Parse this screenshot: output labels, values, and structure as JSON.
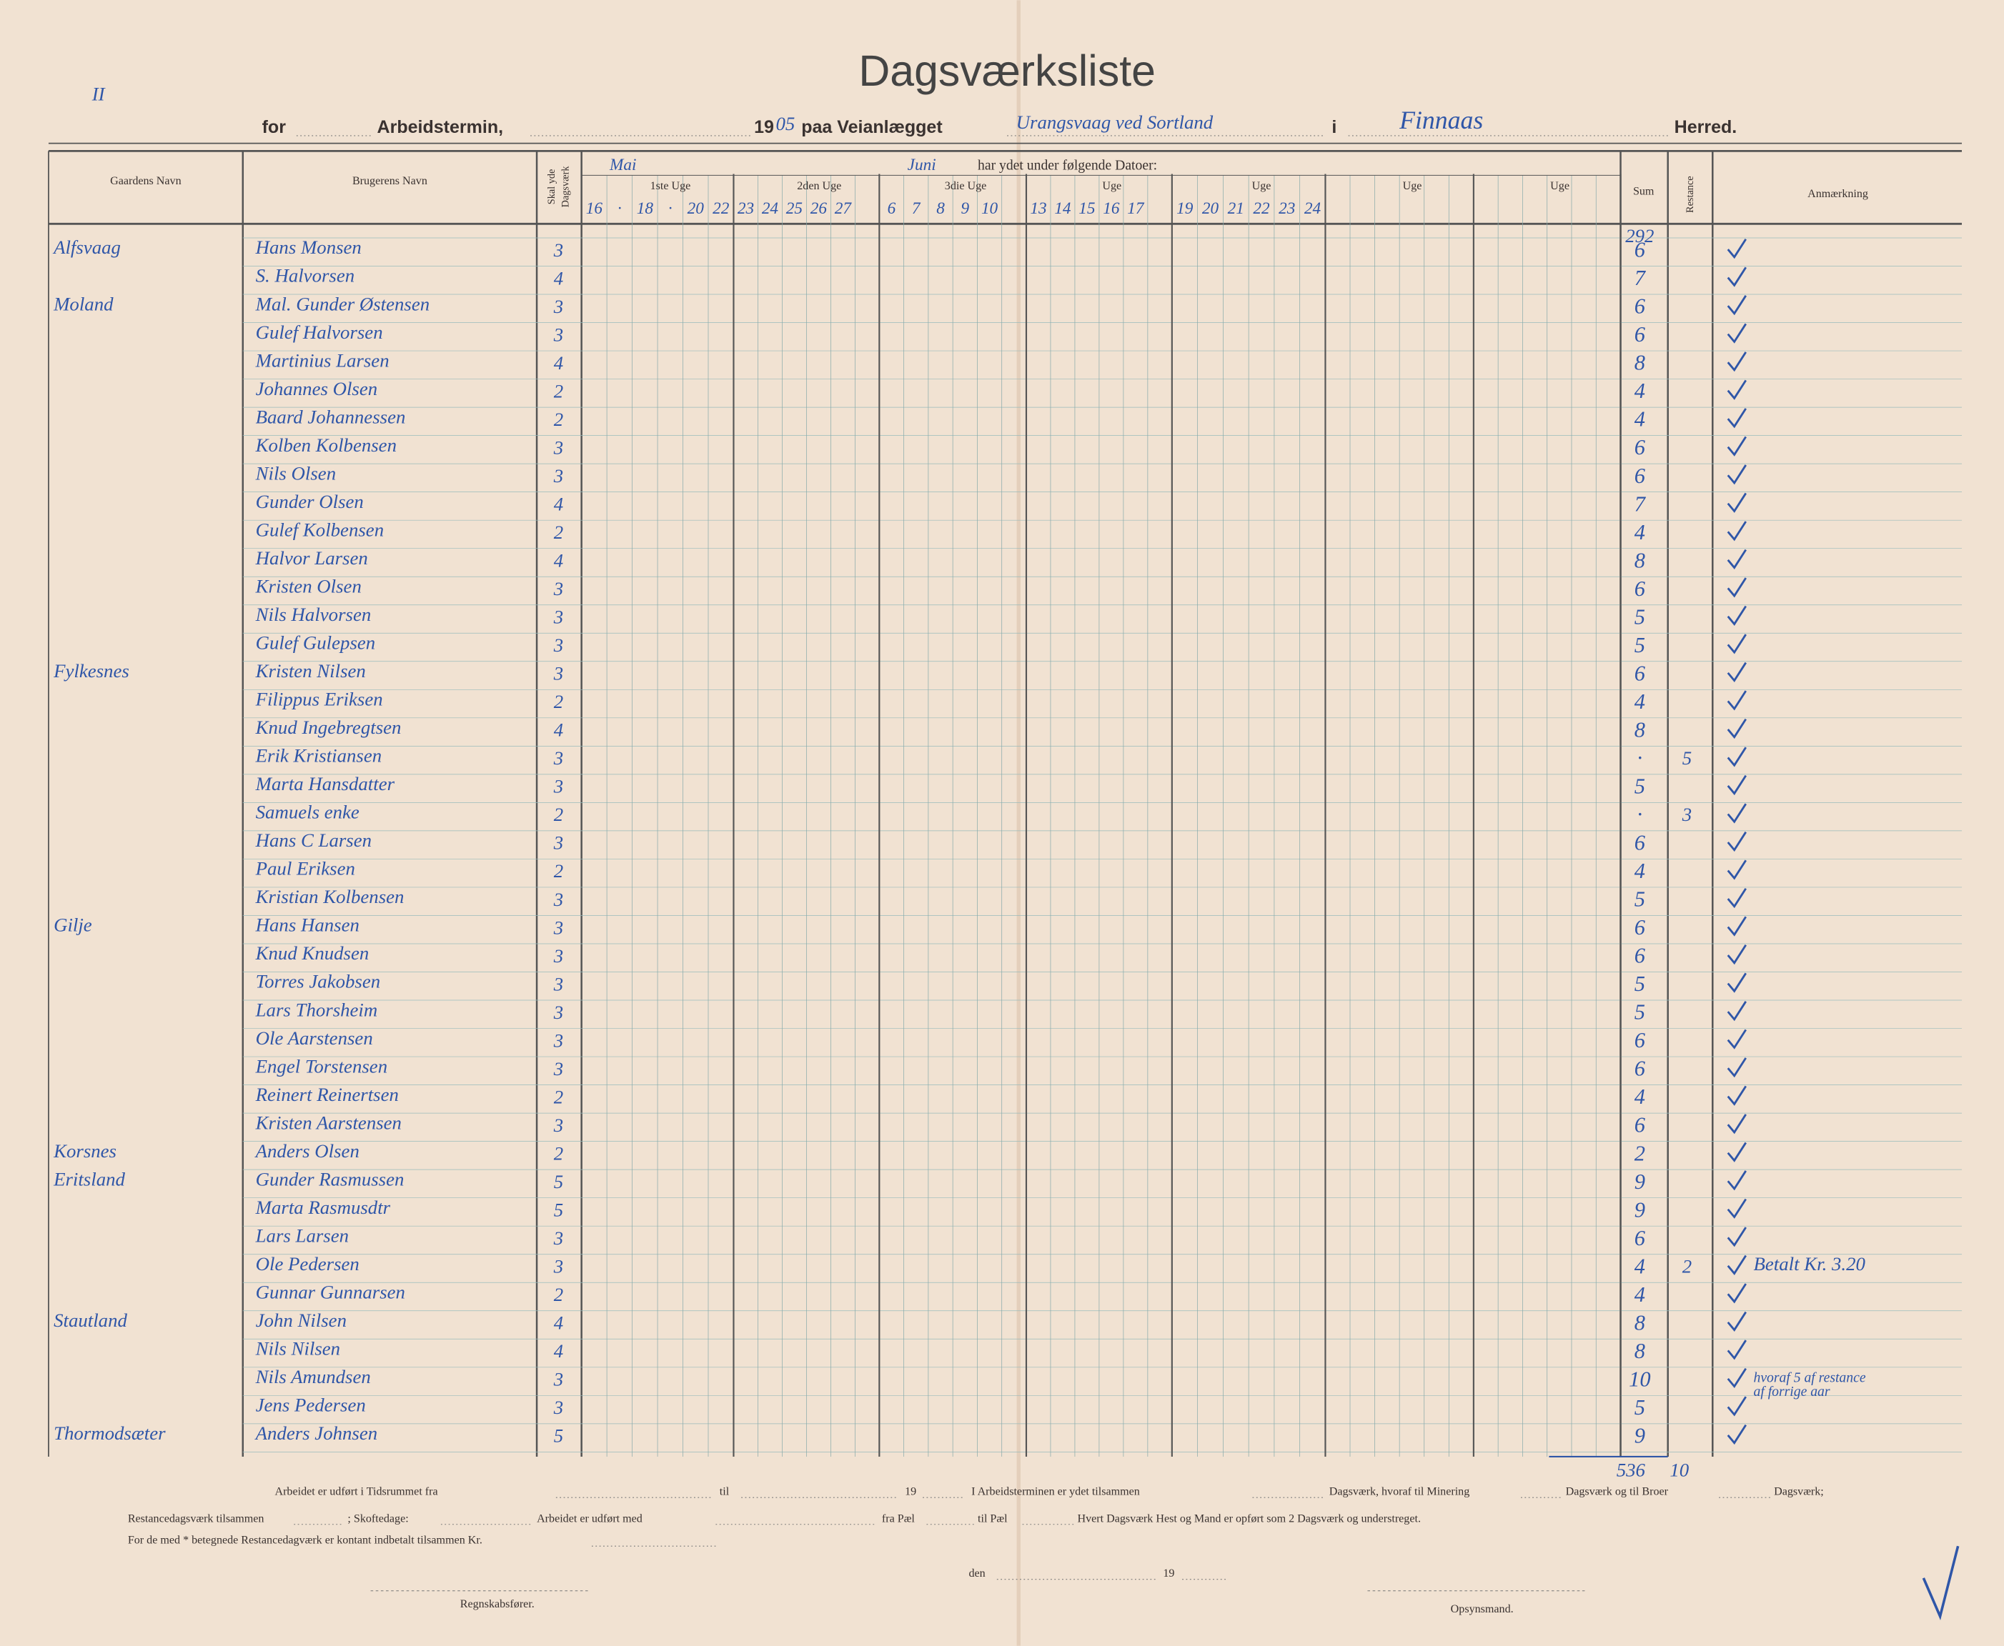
{
  "corner_mark": "II",
  "header": {
    "title": "Dagsværksliste",
    "for": "for",
    "termin": "Arbeidstermin,",
    "year_prefix": "19",
    "year": "05",
    "paa": "paa Veianlægget",
    "veianlaeg": "Urangsvaag ved Sortland",
    "i": "i",
    "herred_name": "Finnaas",
    "herred": "Herred."
  },
  "columns": {
    "gaard": "Gaardens Navn",
    "bruger": "Brugerens Navn",
    "skal": [
      "Skal yde",
      "Dagsværk"
    ],
    "datoer": "har ydet under følgende Datoer:",
    "weeks": [
      {
        "label": "1ste Uge",
        "month": "Mai",
        "dates": [
          "16",
          "·",
          "18",
          "·",
          "20",
          "22"
        ]
      },
      {
        "label": "2den Uge",
        "dates": [
          "23",
          "24",
          "25",
          "26",
          "27"
        ]
      },
      {
        "label": "3die Uge",
        "month": "Juni",
        "dates": [
          "6",
          "7",
          "8",
          "9",
          "10"
        ]
      },
      {
        "label": "Uge",
        "dates": [
          "13",
          "14",
          "15",
          "16",
          "17"
        ]
      },
      {
        "label": "Uge",
        "dates": [
          "19",
          "20",
          "21",
          "22",
          "23",
          "24"
        ]
      },
      {
        "label": "Uge"
      },
      {
        "label": "Uge"
      }
    ],
    "sum": "Sum",
    "restance": "Restance",
    "anm": "Anmærkning"
  },
  "sum_carry": "292",
  "rows": [
    {
      "gaard": "Alfsvaag",
      "bruger": "Hans Monsen",
      "skal": 3,
      "sum": 6
    },
    {
      "bruger": "S. Halvorsen",
      "skal": 4,
      "sum": 7
    },
    {
      "gaard": "Moland",
      "bruger": "Mal. Gunder Østensen",
      "skal": 3,
      "sum": 6
    },
    {
      "bruger": "Gulef Halvorsen",
      "skal": 3,
      "sum": 6
    },
    {
      "bruger": "Martinius Larsen",
      "skal": 4,
      "sum": 8
    },
    {
      "bruger": "Johannes Olsen",
      "skal": 2,
      "sum": 4
    },
    {
      "bruger": "Baard Johannessen",
      "skal": 2,
      "sum": 4
    },
    {
      "bruger": "Kolben Kolbensen",
      "skal": 3,
      "sum": 6
    },
    {
      "bruger": "Nils Olsen",
      "skal": 3,
      "sum": 6
    },
    {
      "bruger": "Gunder Olsen",
      "skal": 4,
      "sum": 7
    },
    {
      "bruger": "Gulef Kolbensen",
      "skal": 2,
      "sum": 4
    },
    {
      "bruger": "Halvor Larsen",
      "skal": 4,
      "sum": 8
    },
    {
      "bruger": "Kristen Olsen",
      "skal": 3,
      "sum": 6
    },
    {
      "bruger": "Nils Halvorsen",
      "skal": 3,
      "sum": 5
    },
    {
      "bruger": "Gulef Gulepsen",
      "skal": 3,
      "sum": 5
    },
    {
      "gaard": "Fylkesnes",
      "bruger": "Kristen Nilsen",
      "skal": 3,
      "sum": 6
    },
    {
      "bruger": "Filippus Eriksen",
      "skal": 2,
      "sum": 4
    },
    {
      "bruger": "Knud Ingebregtsen",
      "skal": 4,
      "sum": 8
    },
    {
      "bruger": "Erik Kristiansen",
      "skal": 3,
      "sum": "·",
      "restance": 5
    },
    {
      "bruger": "Marta Hansdatter",
      "skal": 3,
      "sum": 5
    },
    {
      "bruger": "Samuels enke",
      "skal": 2,
      "sum": "·",
      "restance": 3
    },
    {
      "bruger": "Hans C Larsen",
      "skal": 3,
      "sum": 6
    },
    {
      "bruger": "Paul Eriksen",
      "skal": 2,
      "sum": 4
    },
    {
      "bruger": "Kristian Kolbensen",
      "skal": 3,
      "sum": 5
    },
    {
      "gaard": "Gilje",
      "bruger": "Hans Hansen",
      "skal": 3,
      "sum": 6
    },
    {
      "bruger": "Knud Knudsen",
      "skal": 3,
      "sum": 6
    },
    {
      "bruger": "Torres Jakobsen",
      "skal": 3,
      "sum": 5
    },
    {
      "bruger": "Lars Thorsheim",
      "skal": 3,
      "sum": 5
    },
    {
      "bruger": "Ole Aarstensen",
      "skal": 3,
      "sum": 6
    },
    {
      "bruger": "Engel Torstensen",
      "skal": 3,
      "sum": 6
    },
    {
      "bruger": "Reinert Reinertsen",
      "skal": 2,
      "sum": 4
    },
    {
      "bruger": "Kristen Aarstensen",
      "skal": 3,
      "sum": 6
    },
    {
      "gaard": "Korsnes",
      "bruger": "Anders Olsen",
      "skal": 2,
      "sum": 2
    },
    {
      "gaard": "Eritsland",
      "bruger": "Gunder Rasmussen",
      "skal": 5,
      "sum": 9
    },
    {
      "bruger": "Marta Rasmusdtr",
      "skal": 5,
      "sum": 9
    },
    {
      "bruger": "Lars Larsen",
      "skal": 3,
      "sum": 6
    },
    {
      "bruger": "Ole Pedersen",
      "skal": 3,
      "sum": 4,
      "restance": 2,
      "note": [
        "Betalt Kr. 3.20"
      ]
    },
    {
      "bruger": "Gunnar Gunnarsen",
      "skal": 2,
      "sum": 4
    },
    {
      "gaard": "Stautland",
      "bruger": "John Nilsen",
      "skal": 4,
      "sum": 8
    },
    {
      "bruger": "Nils Nilsen",
      "skal": 4,
      "sum": 8
    },
    {
      "bruger": "Nils Amundsen",
      "skal": 3,
      "sum": 10,
      "note": [
        "hvoraf 5 af restance",
        "af forrige aar"
      ]
    },
    {
      "bruger": "Jens Pedersen",
      "skal": 3,
      "sum": 5
    },
    {
      "gaard": "Thormodsæter",
      "bruger": "Anders Johnsen",
      "skal": 5,
      "sum": 9
    }
  ],
  "totals": {
    "sum": "536",
    "restance": "10"
  },
  "footer": {
    "l1": [
      "Arbeidet er udført i Tidsrummet fra",
      "til",
      "19",
      "I Arbeidsterminen er ydet tilsammen",
      "Dagsværk, hvoraf til Minering",
      "Dagsværk og til Broer",
      "Dagsværk;"
    ],
    "l2": [
      "Restancedagsværk tilsammen",
      "; Skoftedage:",
      "Arbeidet er udført med",
      "fra Pæl",
      "til Pæl",
      "Hvert Dagsværk Hest og Mand er opført som 2 Dagsværk og understreget."
    ],
    "l3": "For de med * betegnede Restancedagværk er kontant indbetalt tilsammen Kr.",
    "den": "den",
    "den_year": "19",
    "regnskab": "Regnskabsfører.",
    "opsyn": "Opsynsmand."
  }
}
